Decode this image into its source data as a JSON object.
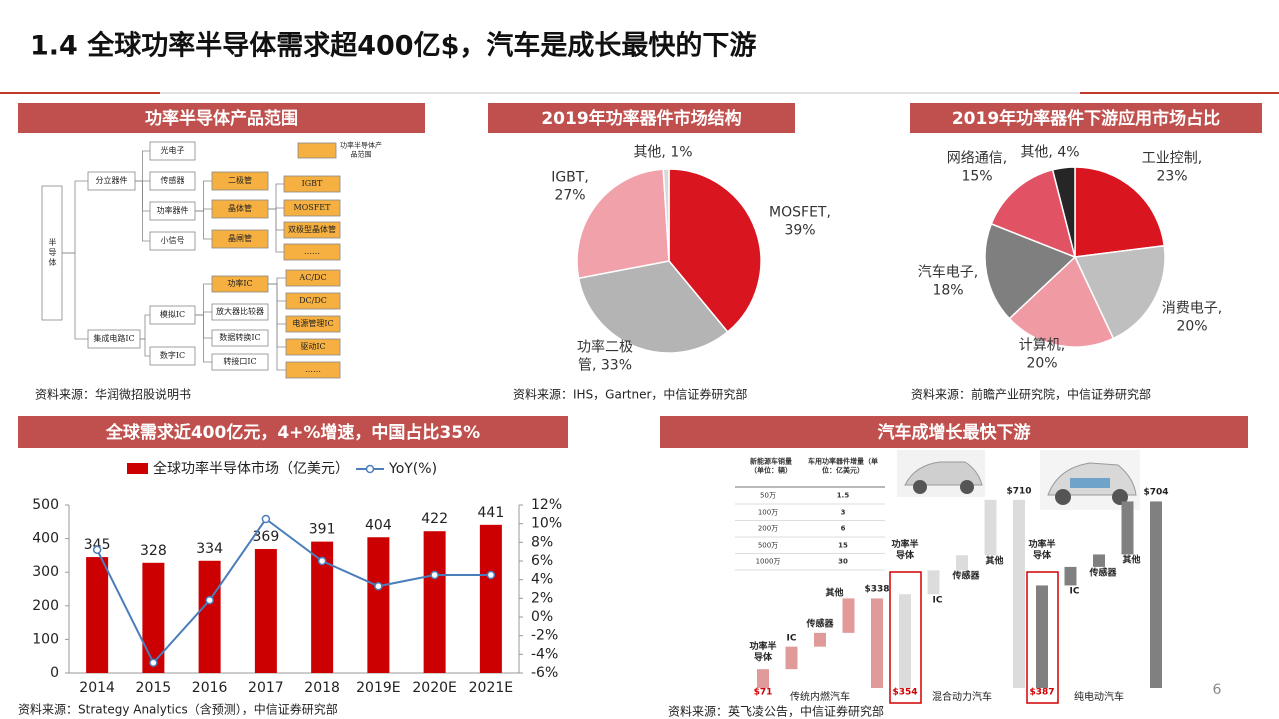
{
  "header": {
    "title": "1.4 全球功率半导体需求超400亿$，汽车是成长最快的下游"
  },
  "page_number": "6",
  "diagram": {
    "title": "功率半导体产品范围",
    "legend": "功率半导体产品范围",
    "source": "资料来源：华润微招股说明书",
    "tree": {
      "label": "半导体",
      "children": [
        {
          "label": "分立器件",
          "children": [
            {
              "label": "光电子"
            },
            {
              "label": "传感器"
            },
            {
              "label": "功率器件",
              "children": [
                {
                  "label": "二极管"
                },
                {
                  "label": "晶体管",
                  "children": [
                    {
                      "label": "IGBT"
                    },
                    {
                      "label": "MOSFET"
                    },
                    {
                      "label": "双极型晶体管"
                    },
                    {
                      "label": "……"
                    }
                  ]
                },
                {
                  "label": "晶闸管"
                }
              ]
            },
            {
              "label": "小信号"
            }
          ]
        },
        {
          "label": "集成电路IC",
          "children": [
            {
              "label": "模拟IC",
              "children": [
                {
                  "label": "功率IC",
                  "children": [
                    {
                      "label": "AC/DC"
                    },
                    {
                      "label": "DC/DC"
                    },
                    {
                      "label": "电源管理IC"
                    },
                    {
                      "label": "驱动IC"
                    },
                    {
                      "label": "……"
                    }
                  ]
                },
                {
                  "label": "放大器比较器"
                },
                {
                  "label": "数据转换IC"
                },
                {
                  "label": "转接口IC"
                }
              ]
            },
            {
              "label": "数字IC"
            }
          ]
        }
      ]
    }
  },
  "chart_data": [
    {
      "type": "pie",
      "title": "2019年功率器件市场结构",
      "values": [
        39,
        33,
        27,
        1
      ],
      "value_labels": [
        "MOSFET, 39%",
        "功率二极管, 33%",
        "IGBT, 27%",
        "其他, 1%"
      ],
      "colors": [
        "#d9151f",
        "#b4b4b4",
        "#f0a1aa",
        "#d9d9d9"
      ],
      "source": "资料来源：IHS，Gartner，中信证券研究部"
    },
    {
      "type": "pie",
      "title": "2019年功率器件下游应用市场占比",
      "values": [
        23,
        20,
        20,
        18,
        15,
        4
      ],
      "value_labels": [
        "工业控制, 23%",
        "消费电子, 20%",
        "计算机, 20%",
        "汽车电子, 18%",
        "网络通信, 15%",
        "其他, 4%"
      ],
      "colors": [
        "#d9151f",
        "#bfbfbf",
        "#f09aa4",
        "#7f7f7f",
        "#e05264",
        "#262626"
      ],
      "source": "资料来源：前瞻产业研究院，中信证券研究部"
    },
    {
      "type": "bar",
      "title": "全球需求近400亿元，4+%增速，中国占比35%",
      "categories": [
        "2014",
        "2015",
        "2016",
        "2017",
        "2018",
        "2019E",
        "2020E",
        "2021E"
      ],
      "series": [
        {
          "name": "全球功率半导体市场（亿美元）",
          "color": "#cc0000",
          "values": [
            345,
            328,
            334,
            369,
            391,
            404,
            422,
            441
          ]
        },
        {
          "name": "YoY(%)",
          "type": "line",
          "axis": "y2",
          "color": "#4a7ebb",
          "values": [
            7.2,
            -4.9,
            1.8,
            10.5,
            6.0,
            3.3,
            4.5,
            4.5
          ]
        }
      ],
      "ylim": [
        0,
        500
      ],
      "yticks": [
        0,
        100,
        200,
        300,
        400,
        500
      ],
      "y2lim": [
        -6,
        12
      ],
      "y2ticks": [
        {
          "value": -6,
          "label": "-6%"
        },
        {
          "value": -4,
          "label": "-4%"
        },
        {
          "value": -2,
          "label": "-2%"
        },
        {
          "value": 0,
          "label": "0%"
        },
        {
          "value": 2,
          "label": "2%"
        },
        {
          "value": 4,
          "label": "4%"
        },
        {
          "value": 6,
          "label": "6%"
        },
        {
          "value": 8,
          "label": "8%"
        },
        {
          "value": 10,
          "label": "10%"
        },
        {
          "value": 12,
          "label": "12%"
        }
      ],
      "source": "资料来源：Strategy Analytics（含预测），中信证券研究部"
    },
    {
      "type": "waterfall",
      "title": "汽车成增长最快下游",
      "table": {
        "columns": [
          "新能源车销量（单位：辆）",
          "车用功率器件增量（单位：亿美元）"
        ],
        "rows": [
          [
            "50万",
            1.5
          ],
          [
            "100万",
            3
          ],
          [
            "200万",
            6
          ],
          [
            "500万",
            15
          ],
          [
            "1000万",
            30
          ]
        ]
      },
      "groups": [
        {
          "name": "传统内燃汽车",
          "color": "#e09a9a",
          "segments": [
            "功率半导体",
            "IC",
            "传感器",
            "其他"
          ],
          "values": [
            71,
            85,
            52,
            130
          ],
          "value_labels": [
            "$71",
            null,
            null,
            null
          ],
          "total": 338,
          "total_label": "$338"
        },
        {
          "name": "混合动力汽车",
          "color": "#dcdcdc",
          "segments": [
            "功率半导体",
            "IC",
            "传感器",
            "其他"
          ],
          "values": [
            354,
            90,
            57,
            209
          ],
          "value_labels": [
            "$354",
            null,
            null,
            null
          ],
          "total": 710,
          "total_label": "$710"
        },
        {
          "name": "纯电动汽车",
          "color": "#808080",
          "segments": [
            "功率半导体",
            "IC",
            "传感器",
            "其他"
          ],
          "values": [
            387,
            70,
            47,
            200
          ],
          "value_labels": [
            "$387",
            null,
            null,
            null
          ],
          "total": 704,
          "total_label": "$704"
        }
      ],
      "source": "资料来源：英飞凌公告，中信证券研究部"
    }
  ]
}
